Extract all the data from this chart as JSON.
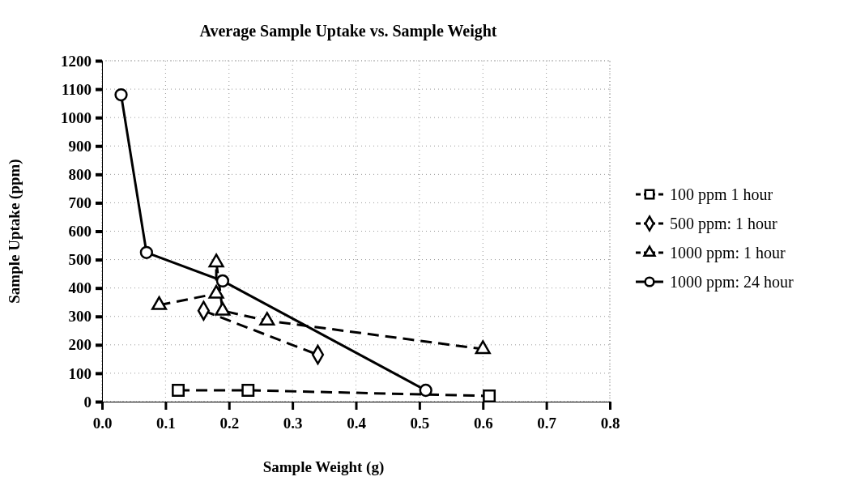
{
  "chart_data": {
    "type": "line",
    "title": "Average  Sample Uptake vs. Sample Weight",
    "xlabel": "Sample Weight (g)",
    "ylabel": "Sample Uptake (ppm)",
    "xlim": [
      0,
      0.8
    ],
    "xticks": [
      {
        "value": 0,
        "label": "0.0"
      },
      0.1,
      0.2,
      0.3,
      0.4,
      0.5,
      0.6,
      0.7,
      0.8
    ],
    "ylim": [
      0,
      1200
    ],
    "yticks": [
      0,
      100,
      200,
      300,
      400,
      500,
      600,
      700,
      800,
      900,
      1000,
      1100,
      1200
    ],
    "grid": true,
    "legend": "right",
    "series": [
      {
        "name": "100 ppm 1 hour",
        "color": "#000000",
        "marker": "square",
        "line_style": "dashed",
        "x": [
          0.12,
          0.23,
          0.61
        ],
        "values": [
          40,
          40,
          20
        ]
      },
      {
        "name": "500 ppm: 1 hour",
        "color": "#000000",
        "marker": "diamond",
        "line_style": "dashed",
        "x": [
          0.16,
          0.34
        ],
        "values": [
          320,
          165
        ]
      },
      {
        "name": "1000 ppm: 1 hour",
        "color": "#000000",
        "marker": "triangle",
        "line_style": "dashed",
        "x": [
          0.09,
          0.18,
          0.18,
          0.19,
          0.26,
          0.6
        ],
        "values": [
          340,
          380,
          490,
          320,
          285,
          185
        ]
      },
      {
        "name": "1000 ppm: 24 hour",
        "color": "#000000",
        "marker": "circle",
        "line_style": "solid",
        "x": [
          0.03,
          0.07,
          0.19,
          0.51
        ],
        "values": [
          1080,
          525,
          425,
          40
        ]
      }
    ]
  }
}
